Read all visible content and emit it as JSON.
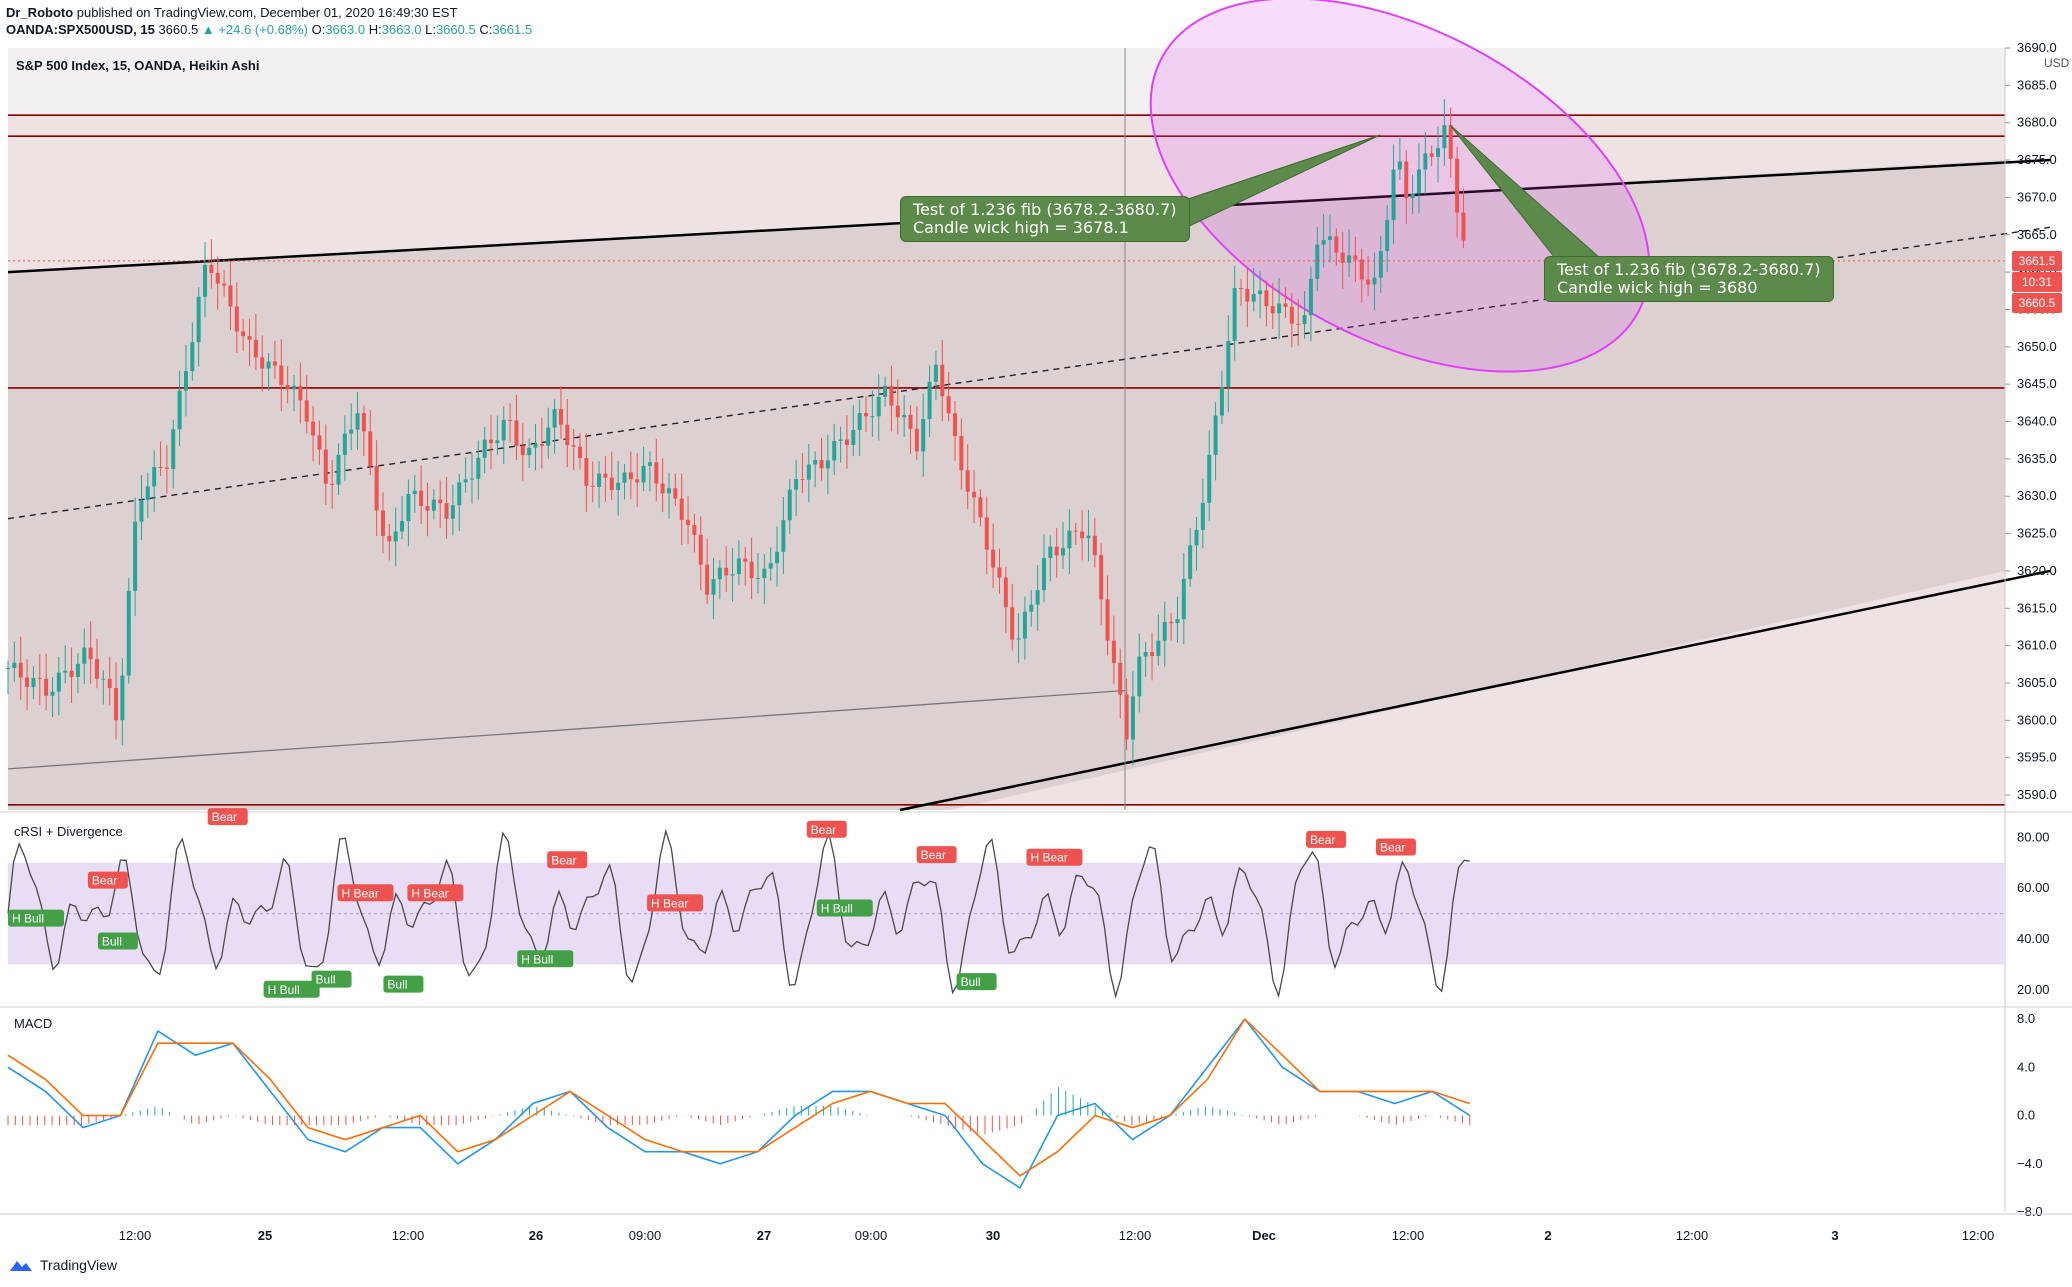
{
  "header": {
    "author": "Dr_Roboto",
    "published": "published on TradingView.com, December 01, 2020 16:49:30 EST",
    "symbol": "OANDA:SPX500USD, 15",
    "price": "3660.5",
    "change": "▲ +24.6 (+0.68%)",
    "o_label": "O:",
    "o": "3663.0",
    "h_label": "H:",
    "h": "3663.0",
    "l_label": "L:",
    "l": "3660.5",
    "c_label": "C:",
    "c": "3661.5"
  },
  "chart_title": "S&P 500 Index, 15, OANDA, Heikin Ashi",
  "price_tags": {
    "last": "3661.5",
    "timer": "10:31",
    "close": "3660.5",
    "currency": "USD"
  },
  "callouts": [
    {
      "line1": "Test of 1.236 fib (3678.2-3680.7)",
      "line2": "Candle wick high = 3678.1"
    },
    {
      "line1": "Test of 1.236 fib (3678.2-3680.7)",
      "line2": "Candle wick high = 3680"
    }
  ],
  "panes": {
    "crsi_title": "cRSI + Divergence",
    "macd_title": "MACD"
  },
  "x_ticks": [
    "12:00",
    "25",
    "12:00",
    "26",
    "09:00",
    "27",
    "09:00",
    "30",
    "12:00",
    "Dec",
    "12:00",
    "2",
    "12:00",
    "3",
    "12:00"
  ],
  "footer": {
    "brand": "TradingView"
  },
  "colors": {
    "up": "#26a69a",
    "down": "#ef5350",
    "fib_line": "#8b0000",
    "ellipse": "#e040fb",
    "callout": "#5c8a4a",
    "rsi": "#4a4a4a",
    "macd": "#2196f3",
    "signal": "#ff6d00",
    "bull_label": "#43a047",
    "bear_label": "#ef5350"
  },
  "chart_data": [
    {
      "type": "candlestick",
      "title": "S&P 500 Index, 15, OANDA, Heikin Ashi",
      "y_ticks": [
        "3690.0",
        "3685.0",
        "3680.0",
        "3675.0",
        "3670.0",
        "3665.0",
        "3660.0",
        "3655.0",
        "3650.0",
        "3645.0",
        "3640.0",
        "3635.0",
        "3630.0",
        "3625.0",
        "3620.0",
        "3615.0",
        "3610.0",
        "3605.0",
        "3600.0",
        "3595.0",
        "3590.0"
      ],
      "ylim": [
        3588,
        3690
      ],
      "horizontal_levels": [
        3681,
        3678.2,
        3644.5,
        3588.7
      ],
      "close_path": [
        [
          0,
          3607
        ],
        [
          0.02,
          3604
        ],
        [
          0.04,
          3609
        ],
        [
          0.05,
          3604
        ],
        [
          0.055,
          3600
        ],
        [
          0.065,
          3630
        ],
        [
          0.08,
          3635
        ],
        [
          0.1,
          3662
        ],
        [
          0.12,
          3650
        ],
        [
          0.14,
          3645
        ],
        [
          0.15,
          3641
        ],
        [
          0.16,
          3631
        ],
        [
          0.175,
          3642
        ],
        [
          0.19,
          3622
        ],
        [
          0.2,
          3630
        ],
        [
          0.22,
          3628
        ],
        [
          0.24,
          3637
        ],
        [
          0.25,
          3640
        ],
        [
          0.26,
          3635
        ],
        [
          0.275,
          3641
        ],
        [
          0.29,
          3632
        ],
        [
          0.31,
          3632
        ],
        [
          0.32,
          3634
        ],
        [
          0.34,
          3627
        ],
        [
          0.35,
          3618
        ],
        [
          0.365,
          3621
        ],
        [
          0.38,
          3619
        ],
        [
          0.395,
          3633
        ],
        [
          0.405,
          3634
        ],
        [
          0.42,
          3638
        ],
        [
          0.44,
          3644
        ],
        [
          0.455,
          3637
        ],
        [
          0.465,
          3648
        ],
        [
          0.475,
          3636
        ],
        [
          0.49,
          3624
        ],
        [
          0.505,
          3610
        ],
        [
          0.52,
          3622
        ],
        [
          0.54,
          3626
        ],
        [
          0.545,
          3620
        ],
        [
          0.56,
          3598
        ],
        [
          0.565,
          3607
        ],
        [
          0.585,
          3614
        ],
        [
          0.6,
          3632
        ],
        [
          0.615,
          3658
        ],
        [
          0.63,
          3656
        ],
        [
          0.65,
          3653
        ],
        [
          0.655,
          3665
        ],
        [
          0.67,
          3662
        ],
        [
          0.685,
          3658
        ],
        [
          0.695,
          3676
        ],
        [
          0.7,
          3670
        ],
        [
          0.71,
          3675
        ],
        [
          0.72,
          3679
        ],
        [
          0.725,
          3670
        ],
        [
          0.732,
          3660
        ]
      ]
    },
    {
      "type": "line",
      "title": "cRSI + Divergence",
      "y_ticks": [
        "80.00",
        "60.00",
        "40.00",
        "20.00"
      ],
      "ylim": [
        14,
        90
      ],
      "band": [
        30,
        70
      ],
      "signal_labels": [
        {
          "text": "H Bull",
          "kind": "bull",
          "x": 0.0,
          "y": 48
        },
        {
          "text": "Bull",
          "kind": "bull",
          "x": 0.045,
          "y": 39
        },
        {
          "text": "Bear",
          "kind": "bear",
          "x": 0.04,
          "y": 63
        },
        {
          "text": "Bear",
          "kind": "bear",
          "x": 0.1,
          "y": 88
        },
        {
          "text": "H Bull",
          "kind": "bull",
          "x": 0.128,
          "y": 20
        },
        {
          "text": "Bull",
          "kind": "bull",
          "x": 0.152,
          "y": 24
        },
        {
          "text": "H Bear",
          "kind": "bear",
          "x": 0.165,
          "y": 58
        },
        {
          "text": "Bull",
          "kind": "bull",
          "x": 0.188,
          "y": 22
        },
        {
          "text": "H Bear",
          "kind": "bear",
          "x": 0.2,
          "y": 58
        },
        {
          "text": "Bear",
          "kind": "bear",
          "x": 0.27,
          "y": 71
        },
        {
          "text": "H Bull",
          "kind": "bull",
          "x": 0.255,
          "y": 32
        },
        {
          "text": "H Bear",
          "kind": "bear",
          "x": 0.32,
          "y": 54
        },
        {
          "text": "Bear",
          "kind": "bear",
          "x": 0.4,
          "y": 83
        },
        {
          "text": "H Bull",
          "kind": "bull",
          "x": 0.405,
          "y": 52
        },
        {
          "text": "Bear",
          "kind": "bear",
          "x": 0.455,
          "y": 73
        },
        {
          "text": "Bull",
          "kind": "bull",
          "x": 0.475,
          "y": 23
        },
        {
          "text": "H Bear",
          "kind": "bear",
          "x": 0.51,
          "y": 72
        },
        {
          "text": "Bear",
          "kind": "bear",
          "x": 0.65,
          "y": 79
        },
        {
          "text": "Bear",
          "kind": "bear",
          "x": 0.685,
          "y": 76
        }
      ]
    },
    {
      "type": "line",
      "title": "MACD",
      "y_ticks": [
        "8.0",
        "4.0",
        "0.0",
        "−4.0",
        "−8.0"
      ],
      "ylim": [
        -8,
        9
      ],
      "series": [
        {
          "values": [
            4,
            2,
            -1,
            0,
            7,
            5,
            6,
            2,
            -2,
            -3,
            -1,
            -1,
            -4,
            -2,
            1,
            2,
            -1,
            -3,
            -3,
            -4,
            -3,
            0,
            2,
            2,
            1,
            0,
            -4,
            -6,
            0,
            1,
            -2,
            0,
            4,
            8,
            4,
            2,
            2,
            1,
            2,
            0
          ]
        },
        {
          "values": [
            5,
            3,
            0,
            0,
            6,
            6,
            6,
            3,
            -1,
            -2,
            -1,
            0,
            -3,
            -2,
            0,
            2,
            0,
            -2,
            -3,
            -3,
            -3,
            -1,
            1,
            2,
            1,
            1,
            -2,
            -5,
            -3,
            0,
            -1,
            0,
            3,
            8,
            5,
            2,
            2,
            2,
            2,
            1
          ]
        }
      ]
    }
  ]
}
